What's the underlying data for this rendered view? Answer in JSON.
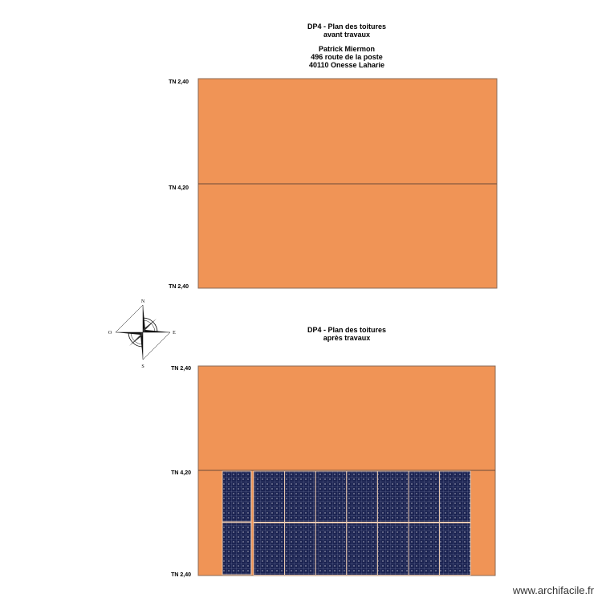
{
  "plan_before": {
    "title": [
      "DP4 - Plan des toitures",
      "avant travaux"
    ],
    "owner": [
      "Patrick Miermon",
      "496 route de la poste",
      "40110 Onesse Laharie"
    ],
    "levels": [
      "TN 2,40",
      "TN 4,20",
      "TN 2,40"
    ]
  },
  "compass": {
    "north": "N",
    "west": "O",
    "east": "E",
    "south": "S"
  },
  "plan_after": {
    "title": [
      "DP4 - Plan des toitures",
      "après travaux"
    ],
    "levels": [
      "TN 2,40",
      "TN 4,20",
      "TN 2,40"
    ]
  },
  "footer": {
    "watermark": "www.archifacile.fr"
  }
}
